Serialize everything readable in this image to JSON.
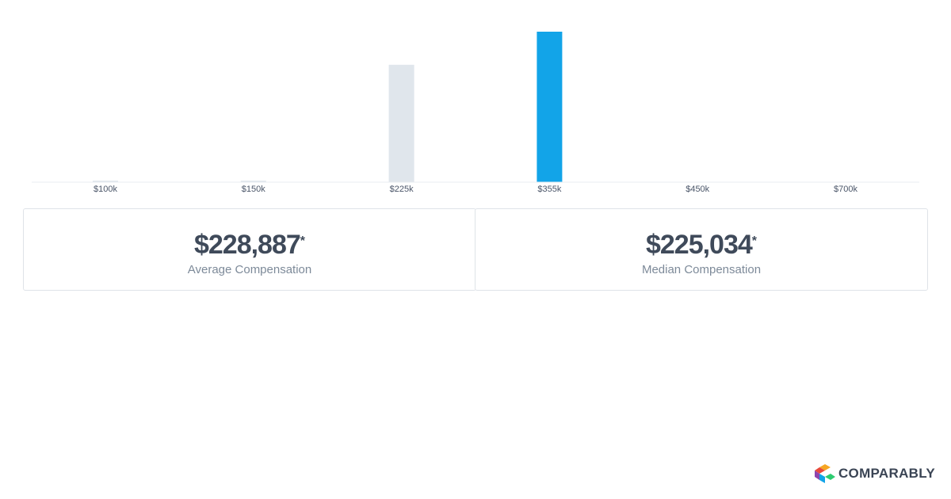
{
  "chart_data": {
    "type": "bar",
    "categories": [
      "$100k",
      "$150k",
      "$225k",
      "$355k",
      "$450k",
      "$700k"
    ],
    "values": [
      1,
      1,
      78,
      100,
      0,
      0
    ],
    "highlight_index": 3,
    "title": "",
    "xlabel": "",
    "ylabel": "",
    "ylim": [
      0,
      100
    ],
    "grid": false,
    "colors": {
      "bar": "#e0e6ec",
      "highlight": "#12a4e8",
      "baseline": "#e8ecf0"
    }
  },
  "stats": {
    "average": {
      "value": "$228,887",
      "asterisk": "*",
      "label": "Average Compensation"
    },
    "median": {
      "value": "$225,034",
      "asterisk": "*",
      "label": "Median Compensation"
    }
  },
  "brand": {
    "name": "COMPARABLY",
    "logo_icon": "comparably-logo-icon",
    "logo_colors": [
      "#f6a623",
      "#e8483b",
      "#8e44ad",
      "#12a4e8",
      "#2ecc71"
    ]
  }
}
